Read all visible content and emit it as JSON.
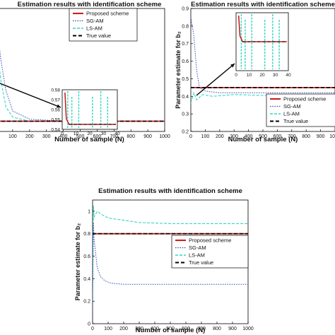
{
  "legend_entries": [
    "Proposed scheme",
    "SG-AM",
    "LS-AM",
    "True value"
  ],
  "colors": {
    "proposed": "#cc1f1f",
    "sg": "#3d4fb5",
    "ls": "#35d6c3",
    "truth": "#000000",
    "axes": "#000000"
  },
  "chart_data": [
    {
      "type": "line",
      "title": "Estimation results with identification scheme",
      "xlabel": "Number of sample (N)",
      "ylabel": "",
      "xlim": [
        0,
        1000
      ],
      "ylim": [
        0.54,
        0.6
      ],
      "xticks": [
        0,
        100,
        200,
        300,
        400,
        500,
        600,
        700,
        800,
        900,
        1000
      ],
      "xtick_labels": [
        "0",
        "100",
        "200",
        "300",
        "400",
        "500",
        "600",
        "700",
        "800",
        "900",
        "1000"
      ],
      "yticks": [],
      "grid": false,
      "legend_position": "top-right",
      "series": [
        {
          "name": "Proposed scheme",
          "x": [
            0,
            1000
          ],
          "y": [
            0.545,
            0.545
          ]
        },
        {
          "name": "True value",
          "x": [
            0,
            1000
          ],
          "y": [
            0.545,
            0.545
          ]
        },
        {
          "name": "SG-AM",
          "x": [
            0,
            10,
            30,
            60,
            100,
            200,
            400,
            600,
            800,
            1000
          ],
          "y": [
            0.6,
            0.59,
            0.575,
            0.56,
            0.55,
            0.546,
            0.545,
            0.545,
            0.545,
            0.545
          ]
        },
        {
          "name": "LS-AM",
          "x": [
            0,
            10,
            30,
            60,
            100,
            200,
            400,
            600,
            800,
            1000
          ],
          "y": [
            0.59,
            0.58,
            0.565,
            0.552,
            0.547,
            0.545,
            0.545,
            0.545,
            0.545,
            0.545
          ]
        }
      ],
      "inset": {
        "xlim": [
          0,
          40
        ],
        "ylim": [
          0.54,
          0.58
        ],
        "ytick_labels": [
          "0.58",
          "0.57",
          "0.56",
          "0.55",
          "0.54"
        ],
        "yticks": [
          0.58,
          0.57,
          0.56,
          0.55,
          0.54
        ],
        "xtick_labels": [
          "0",
          "10",
          "20",
          "30",
          "40"
        ],
        "xticks": [
          0,
          10,
          20,
          30,
          40
        ]
      }
    },
    {
      "type": "line",
      "title": "Estimation results with identification scheme",
      "xlabel": "Number of sample (N)",
      "ylabel": "Parameter estimate for  b₂",
      "xlim": [
        0,
        1000
      ],
      "ylim": [
        0.2,
        0.9
      ],
      "xticks": [
        0,
        100,
        200,
        300,
        400,
        500,
        600,
        700,
        800,
        900,
        1000
      ],
      "xtick_labels": [
        "0",
        "100",
        "200",
        "300",
        "400",
        "500",
        "600",
        "700",
        "800",
        "900",
        "1000"
      ],
      "yticks": [
        0.2,
        0.3,
        0.4,
        0.5,
        0.6,
        0.7,
        0.8,
        0.9
      ],
      "ytick_labels": [
        "0.2",
        "0.3",
        "0.4",
        "0.5",
        "0.6",
        "0.7",
        "0.8",
        "0.9"
      ],
      "grid": false,
      "legend_position": "lower-right",
      "series": [
        {
          "name": "Proposed scheme",
          "x": [
            0,
            1000
          ],
          "y": [
            0.45,
            0.45
          ]
        },
        {
          "name": "True value",
          "x": [
            0,
            1000
          ],
          "y": [
            0.45,
            0.45
          ]
        },
        {
          "name": "SG-AM",
          "x": [
            0,
            20,
            40,
            60,
            100,
            200,
            400,
            600,
            800,
            1000
          ],
          "y": [
            0.85,
            0.75,
            0.55,
            0.45,
            0.43,
            0.42,
            0.42,
            0.42,
            0.42,
            0.42
          ]
        },
        {
          "name": "LS-AM",
          "x": [
            0,
            20,
            40,
            80,
            150,
            300,
            500,
            700,
            1000
          ],
          "y": [
            0.36,
            0.42,
            0.38,
            0.41,
            0.4,
            0.41,
            0.405,
            0.41,
            0.41
          ]
        }
      ],
      "inset": {
        "xlim": [
          0,
          40
        ],
        "ylim": [
          0.3,
          0.6
        ],
        "xtick_labels": [
          "0",
          "10",
          "20",
          "30",
          "40"
        ],
        "xticks": [
          0,
          10,
          20,
          30,
          40
        ]
      }
    },
    {
      "type": "line",
      "title": "Estimation results with identification scheme",
      "xlabel": "Number of sample (N)",
      "ylabel": "Parameter estimate for  b₂",
      "xlim": [
        0,
        1000
      ],
      "ylim": [
        0.0,
        1.1
      ],
      "xticks": [
        0,
        100,
        200,
        300,
        400,
        500,
        600,
        700,
        800,
        900,
        1000
      ],
      "xtick_labels": [
        "0",
        "100",
        "200",
        "300",
        "400",
        "500",
        "600",
        "700",
        "800",
        "900",
        "1000"
      ],
      "yticks": [
        0.0,
        0.2,
        0.4,
        0.6,
        0.8,
        1.0
      ],
      "ytick_labels": [
        "0",
        "0.2",
        "0.4",
        "0.6",
        "0.8",
        "1"
      ],
      "grid": false,
      "legend_position": "center-right",
      "series": [
        {
          "name": "Proposed scheme",
          "x": [
            0,
            1000
          ],
          "y": [
            0.8,
            0.8
          ]
        },
        {
          "name": "True value",
          "x": [
            0,
            1000
          ],
          "y": [
            0.8,
            0.8
          ]
        },
        {
          "name": "SG-AM",
          "x": [
            0,
            5,
            10,
            20,
            30,
            50,
            80,
            120,
            200,
            300,
            500,
            700,
            1000
          ],
          "y": [
            0.1,
            0.9,
            0.75,
            0.62,
            0.5,
            0.42,
            0.38,
            0.36,
            0.35,
            0.35,
            0.35,
            0.35,
            0.35
          ]
        },
        {
          "name": "LS-AM",
          "x": [
            0,
            5,
            10,
            30,
            60,
            100,
            200,
            300,
            500,
            700,
            1000
          ],
          "y": [
            0.2,
            1.05,
            0.95,
            1.0,
            0.97,
            0.94,
            0.92,
            0.9,
            0.89,
            0.89,
            0.89
          ]
        }
      ]
    }
  ]
}
